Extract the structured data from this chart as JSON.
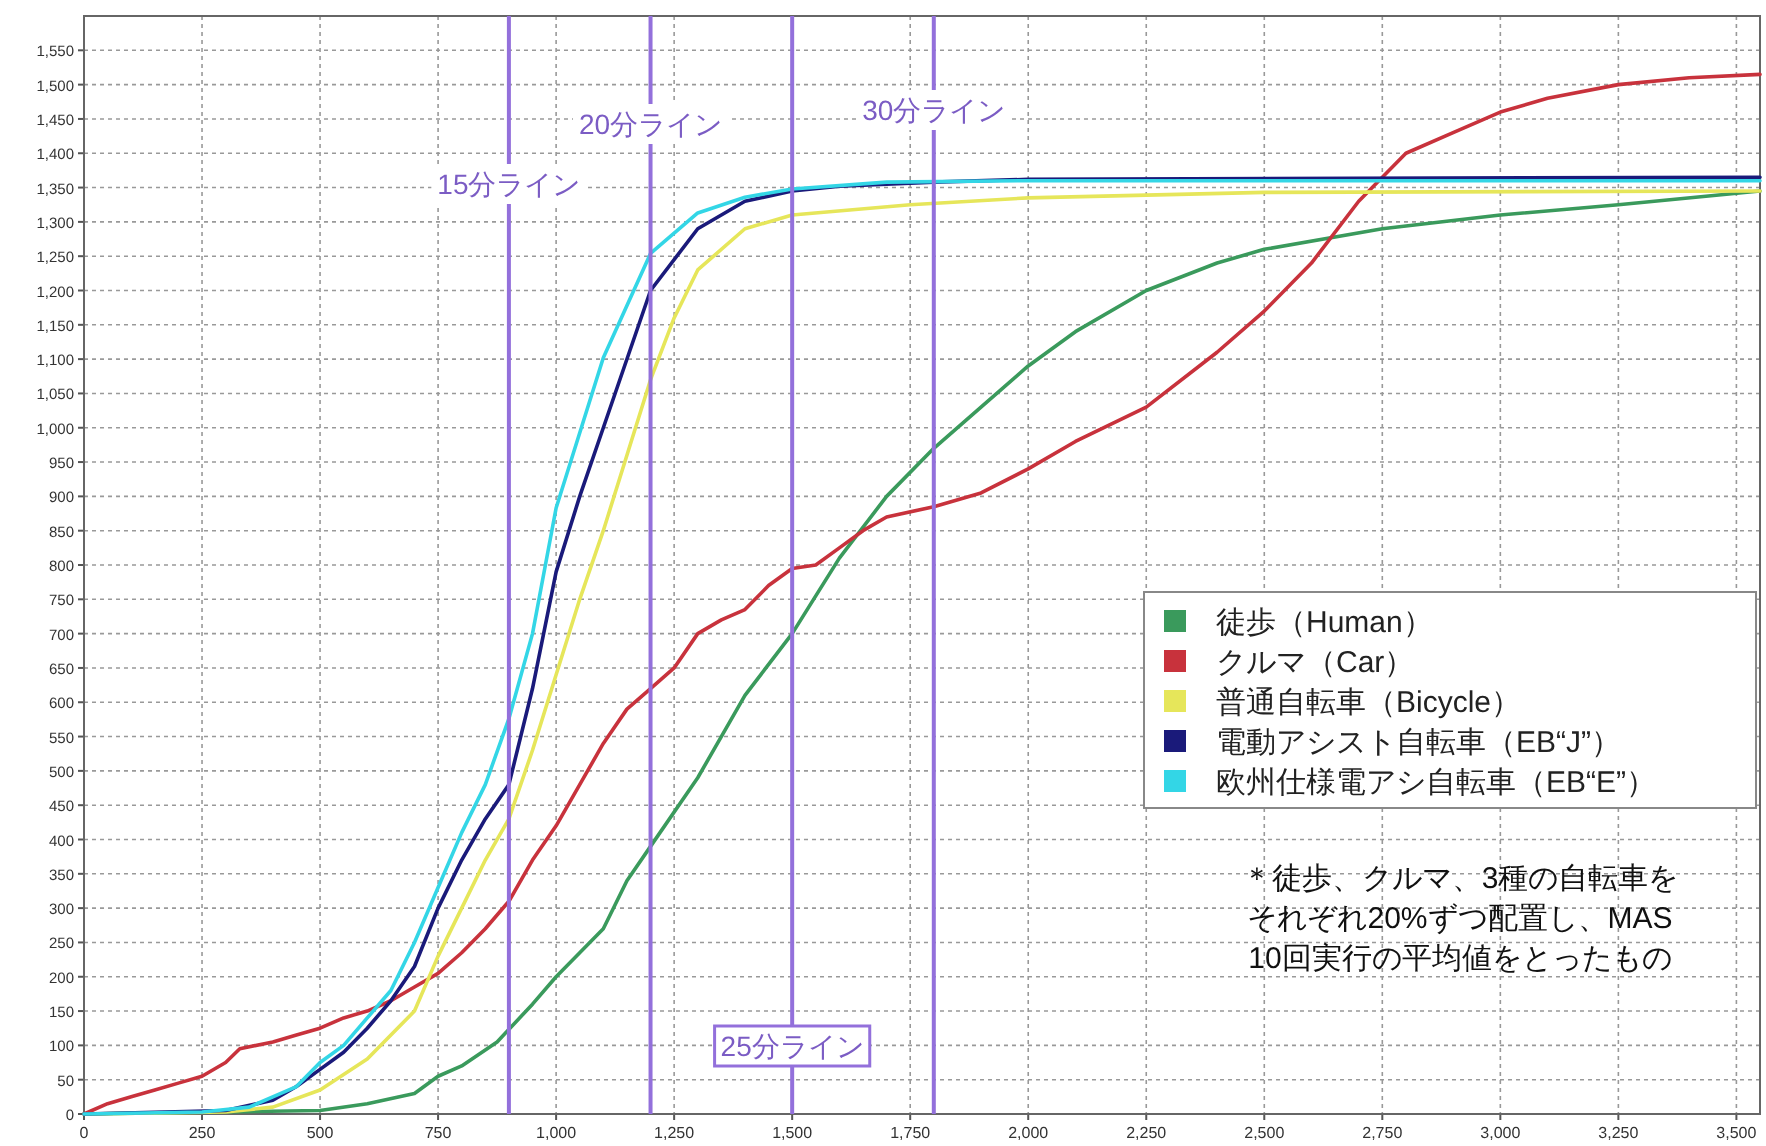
{
  "chart_data": {
    "type": "line",
    "xlim": [
      0,
      3550
    ],
    "ylim": [
      0,
      1600
    ],
    "xticks": [
      0,
      250,
      500,
      750,
      {
        "value": 1000,
        "label": "1,000"
      },
      {
        "value": 1250,
        "label": "1,250"
      },
      {
        "value": 1500,
        "label": "1,500"
      },
      {
        "value": 1750,
        "label": "1,750"
      },
      {
        "value": 2000,
        "label": "2,000"
      },
      {
        "value": 2250,
        "label": "2,250"
      },
      {
        "value": 2500,
        "label": "2,500"
      },
      {
        "value": 2750,
        "label": "2,750"
      },
      {
        "value": 3000,
        "label": "3,000"
      },
      {
        "value": 3250,
        "label": "3,250"
      },
      {
        "value": 3500,
        "label": "3,500"
      }
    ],
    "yticks": [
      0,
      50,
      100,
      150,
      200,
      250,
      300,
      350,
      400,
      450,
      500,
      550,
      600,
      650,
      700,
      750,
      800,
      850,
      900,
      950,
      {
        "value": 1000,
        "label": "1,000"
      },
      {
        "value": 1050,
        "label": "1,050"
      },
      {
        "value": 1100,
        "label": "1,100"
      },
      {
        "value": 1150,
        "label": "1,150"
      },
      {
        "value": 1200,
        "label": "1,200"
      },
      {
        "value": 1250,
        "label": "1,250"
      },
      {
        "value": 1300,
        "label": "1,300"
      },
      {
        "value": 1350,
        "label": "1,350"
      },
      {
        "value": 1400,
        "label": "1,400"
      },
      {
        "value": 1450,
        "label": "1,450"
      },
      {
        "value": 1500,
        "label": "1,500"
      },
      {
        "value": 1550,
        "label": "1,550"
      }
    ],
    "grid": true,
    "legend": "right",
    "marker": "none",
    "line_style": "solid",
    "series": [
      {
        "name": "徒歩（Human）",
        "color": "#3a9a5c",
        "x": [
          0,
          500,
          600,
          700,
          750,
          800,
          875,
          950,
          1000,
          1050,
          1100,
          1150,
          1200,
          1300,
          1400,
          1500,
          1600,
          1700,
          1800,
          1900,
          2000,
          2100,
          2250,
          2400,
          2500,
          2750,
          3000,
          3250,
          3550
        ],
        "values": [
          0,
          5,
          15,
          30,
          55,
          70,
          105,
          160,
          200,
          235,
          270,
          340,
          390,
          490,
          610,
          700,
          810,
          900,
          970,
          1030,
          1090,
          1140,
          1200,
          1240,
          1260,
          1290,
          1310,
          1325,
          1345
        ]
      },
      {
        "name": "クルマ（Car）",
        "color": "#c8323c",
        "x": [
          0,
          50,
          100,
          150,
          200,
          250,
          300,
          330,
          400,
          450,
          500,
          550,
          600,
          650,
          700,
          750,
          800,
          850,
          900,
          950,
          1000,
          1050,
          1100,
          1150,
          1200,
          1250,
          1300,
          1350,
          1400,
          1450,
          1500,
          1550,
          1600,
          1650,
          1700,
          1800,
          1900,
          2000,
          2100,
          2250,
          2400,
          2500,
          2600,
          2700,
          2800,
          2900,
          3000,
          3100,
          3250,
          3400,
          3550
        ],
        "values": [
          0,
          15,
          25,
          35,
          45,
          55,
          75,
          95,
          105,
          115,
          125,
          140,
          150,
          165,
          185,
          205,
          235,
          270,
          310,
          370,
          420,
          480,
          540,
          590,
          620,
          650,
          700,
          720,
          735,
          770,
          795,
          800,
          825,
          850,
          870,
          885,
          905,
          940,
          980,
          1030,
          1110,
          1170,
          1240,
          1330,
          1400,
          1430,
          1460,
          1480,
          1500,
          1510,
          1515
        ]
      },
      {
        "name": "普通自転車（Bicycle）",
        "color": "#e6e65a",
        "x": [
          0,
          300,
          400,
          500,
          600,
          700,
          750,
          800,
          850,
          900,
          950,
          1000,
          1050,
          1100,
          1150,
          1200,
          1250,
          1300,
          1400,
          1500,
          1750,
          2000,
          2500,
          3550
        ],
        "values": [
          0,
          3,
          10,
          35,
          80,
          150,
          230,
          300,
          370,
          430,
          530,
          640,
          750,
          850,
          960,
          1070,
          1160,
          1230,
          1290,
          1310,
          1325,
          1335,
          1343,
          1345
        ]
      },
      {
        "name": "電動アシスト自転車（EB“J”）",
        "color": "#1a1a7a",
        "x": [
          0,
          300,
          400,
          450,
          500,
          550,
          600,
          650,
          700,
          750,
          800,
          850,
          900,
          950,
          1000,
          1050,
          1100,
          1200,
          1300,
          1400,
          1500,
          1600,
          1800,
          2000,
          3550
        ],
        "values": [
          0,
          5,
          20,
          40,
          65,
          90,
          125,
          165,
          215,
          300,
          370,
          430,
          480,
          620,
          790,
          900,
          1000,
          1200,
          1290,
          1330,
          1345,
          1352,
          1358,
          1362,
          1365
        ]
      },
      {
        "name": "欧州仕様電アシ自転車（EB“E”）",
        "color": "#33d6e6",
        "x": [
          0,
          250,
          350,
          450,
          500,
          550,
          600,
          650,
          700,
          750,
          800,
          850,
          900,
          950,
          1000,
          1100,
          1200,
          1300,
          1400,
          1500,
          1700,
          2000,
          3550
        ],
        "values": [
          0,
          3,
          10,
          40,
          75,
          100,
          140,
          180,
          250,
          330,
          410,
          480,
          576,
          700,
          883,
          1102,
          1254,
          1313,
          1336,
          1348,
          1358,
          1360,
          1360
        ]
      }
    ],
    "ref_lines": [
      {
        "axis": "x",
        "value": 900,
        "label": "15分ライン",
        "color": "#9370db"
      },
      {
        "axis": "x",
        "value": 1200,
        "label": "20分ライン",
        "color": "#9370db"
      },
      {
        "axis": "x",
        "value": 1500,
        "label": "25分ライン",
        "color": "#9370db"
      },
      {
        "axis": "x",
        "value": 1800,
        "label": "30分ライン",
        "color": "#9370db"
      }
    ],
    "annotations": [
      "＊徒歩、クルマ、3種の自転車を",
      "それぞれ20%ずつ配置し、MAS",
      "10回実行の平均値をとったもの"
    ]
  }
}
